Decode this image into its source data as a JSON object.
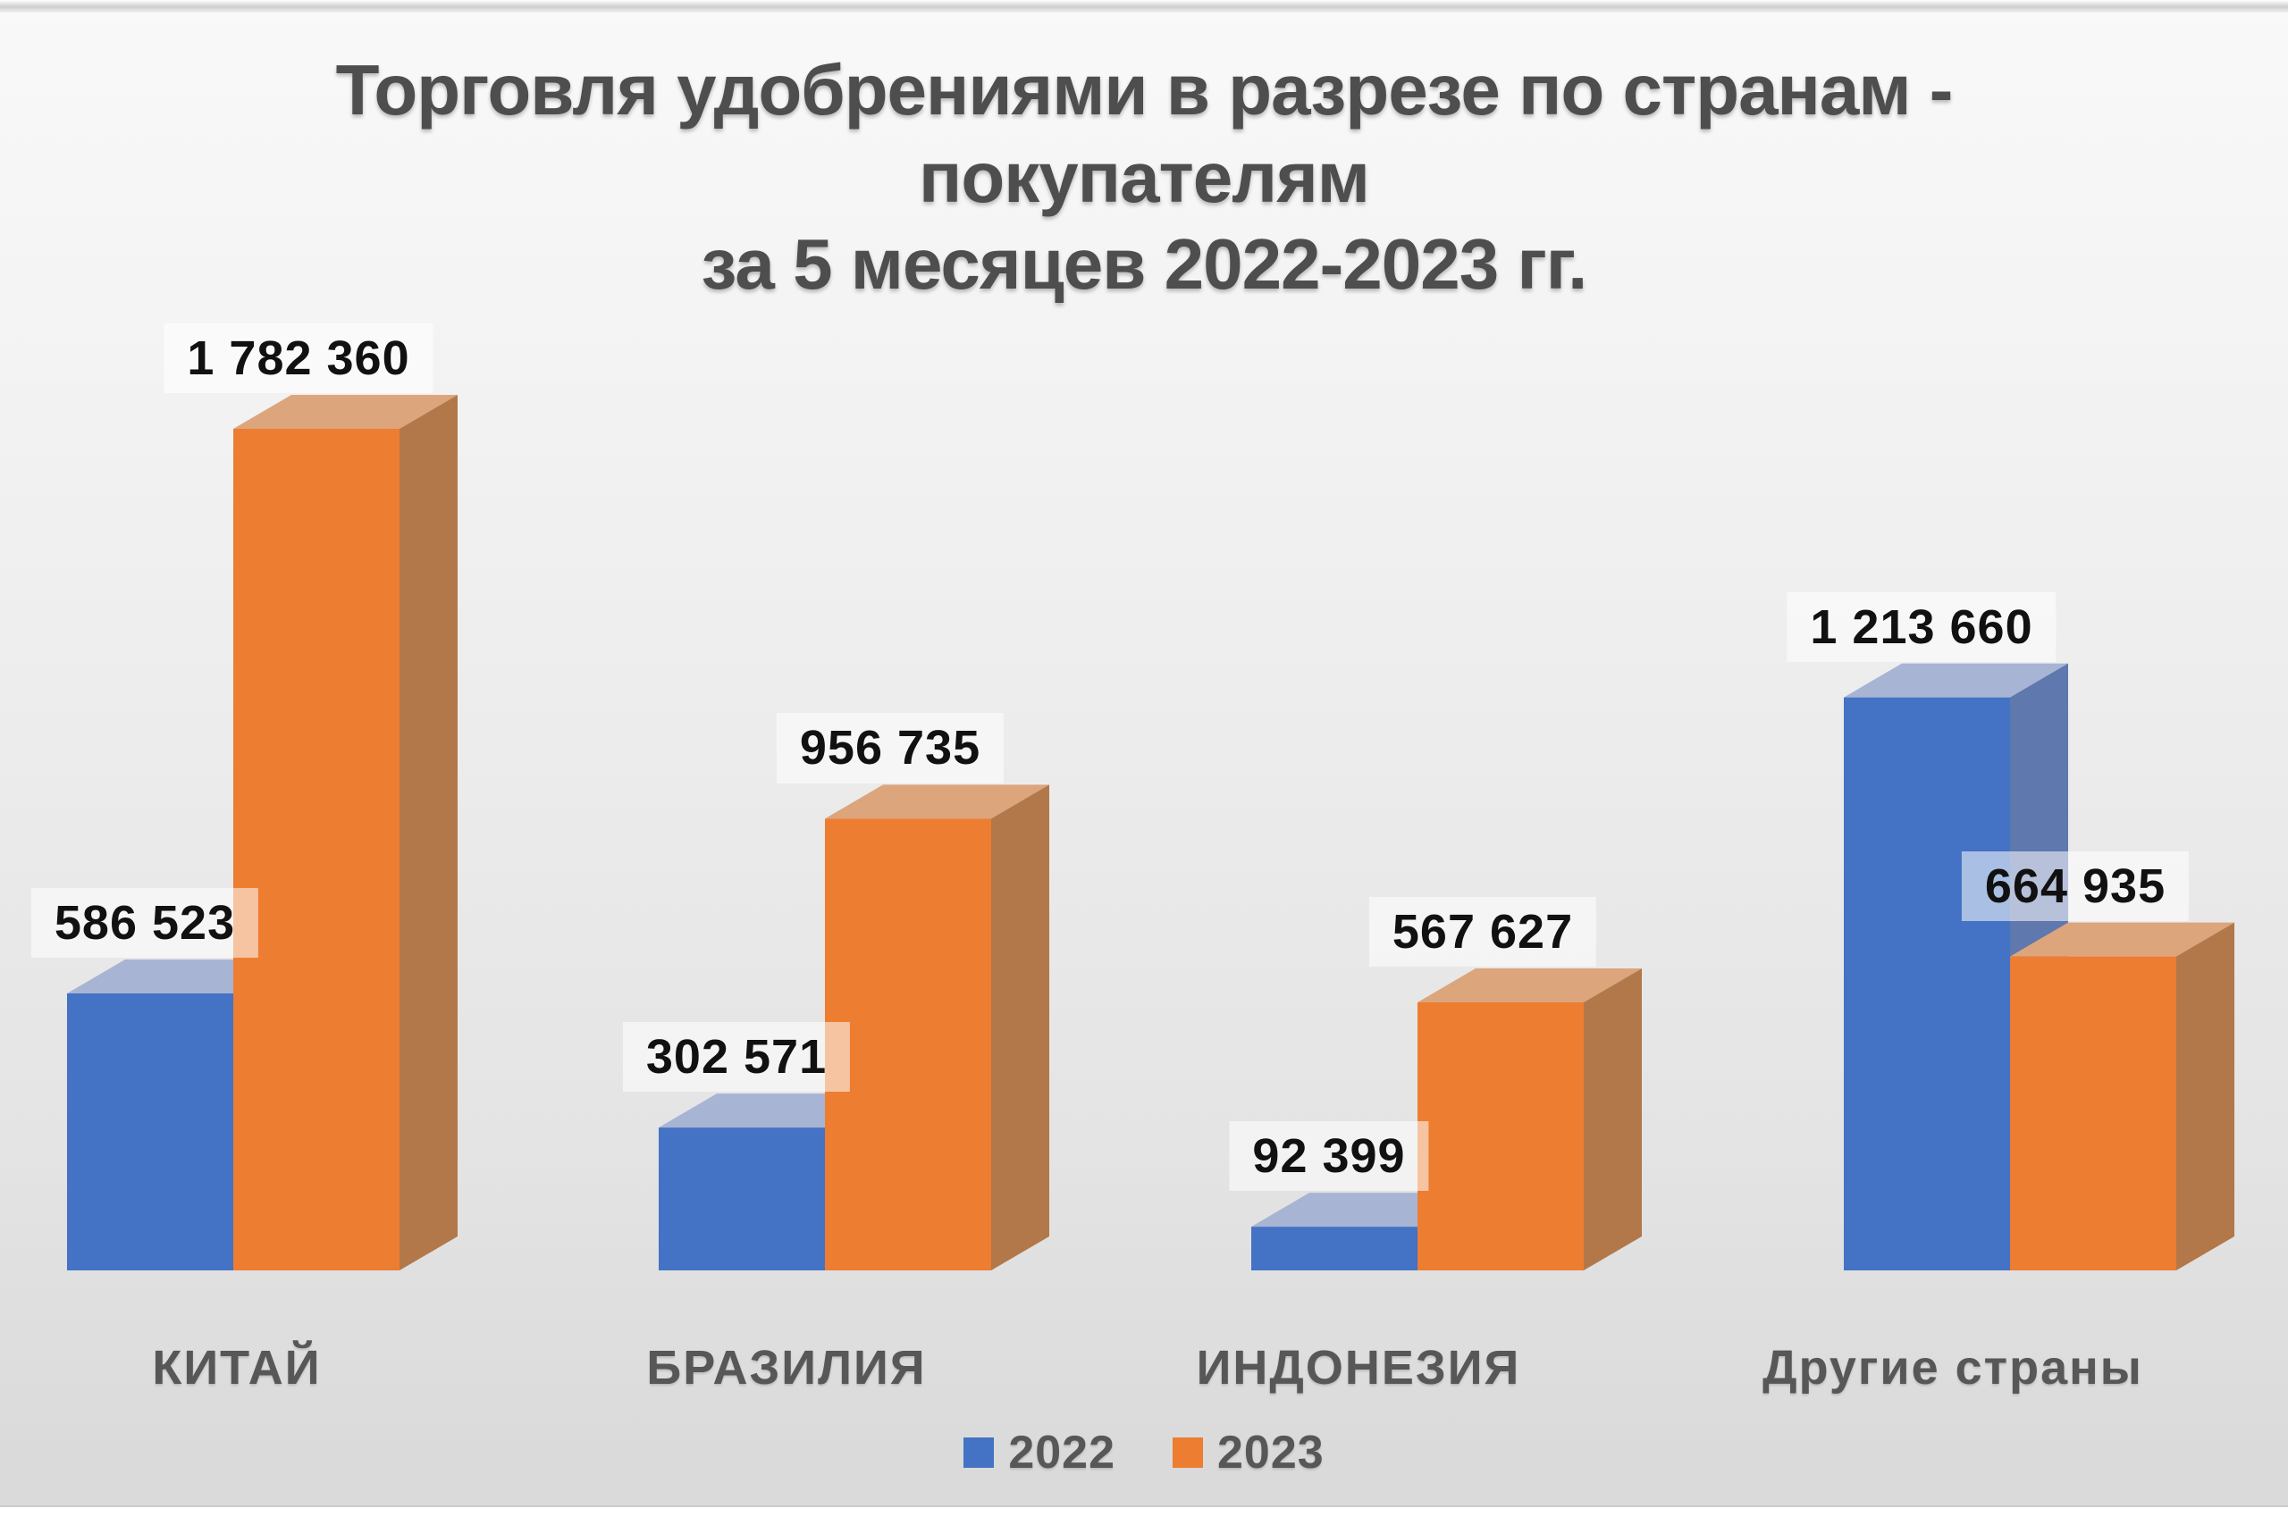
{
  "chart_data": {
    "type": "bar",
    "variant": "3d-clustered-column",
    "title_lines": [
      "Торговля удобрениями в разрезе по странам -",
      "покупателям",
      "за 5 месяцев 2022-2023 гг."
    ],
    "categories": [
      "КИТАЙ",
      "БРАЗИЛИЯ",
      "ИНДОНЕЗИЯ",
      "Другие страны"
    ],
    "series": [
      {
        "name": "2022",
        "color": "#4472C4",
        "top_color": "#a8b4d4",
        "side_color": "#5f78ae",
        "values": [
          586523,
          302571,
          92399,
          1213660
        ],
        "labels": [
          "586 523",
          "302 571",
          "92 399",
          "1 213 660"
        ]
      },
      {
        "name": "2023",
        "color": "#ED7D31",
        "top_color": "#dca57c",
        "side_color": "#b2784a",
        "values": [
          1782360,
          956735,
          567627,
          664935
        ],
        "labels": [
          "1 782 360",
          "956 735",
          "567 627",
          "664 935"
        ]
      }
    ],
    "legend": {
      "position": "bottom",
      "entries": [
        {
          "label": "2022",
          "color": "#4472C4"
        },
        {
          "label": "2023",
          "color": "#ED7D31"
        }
      ]
    },
    "axes": {
      "value_axis_visible": false,
      "gridlines": false,
      "category_axis_visible": true
    },
    "ylim": [
      0,
      1800000
    ],
    "data_labels_visible": true,
    "text_colors": {
      "title": "#4e4e4e",
      "category": "#575757",
      "data_label": "#111111",
      "legend": "#575757"
    }
  }
}
